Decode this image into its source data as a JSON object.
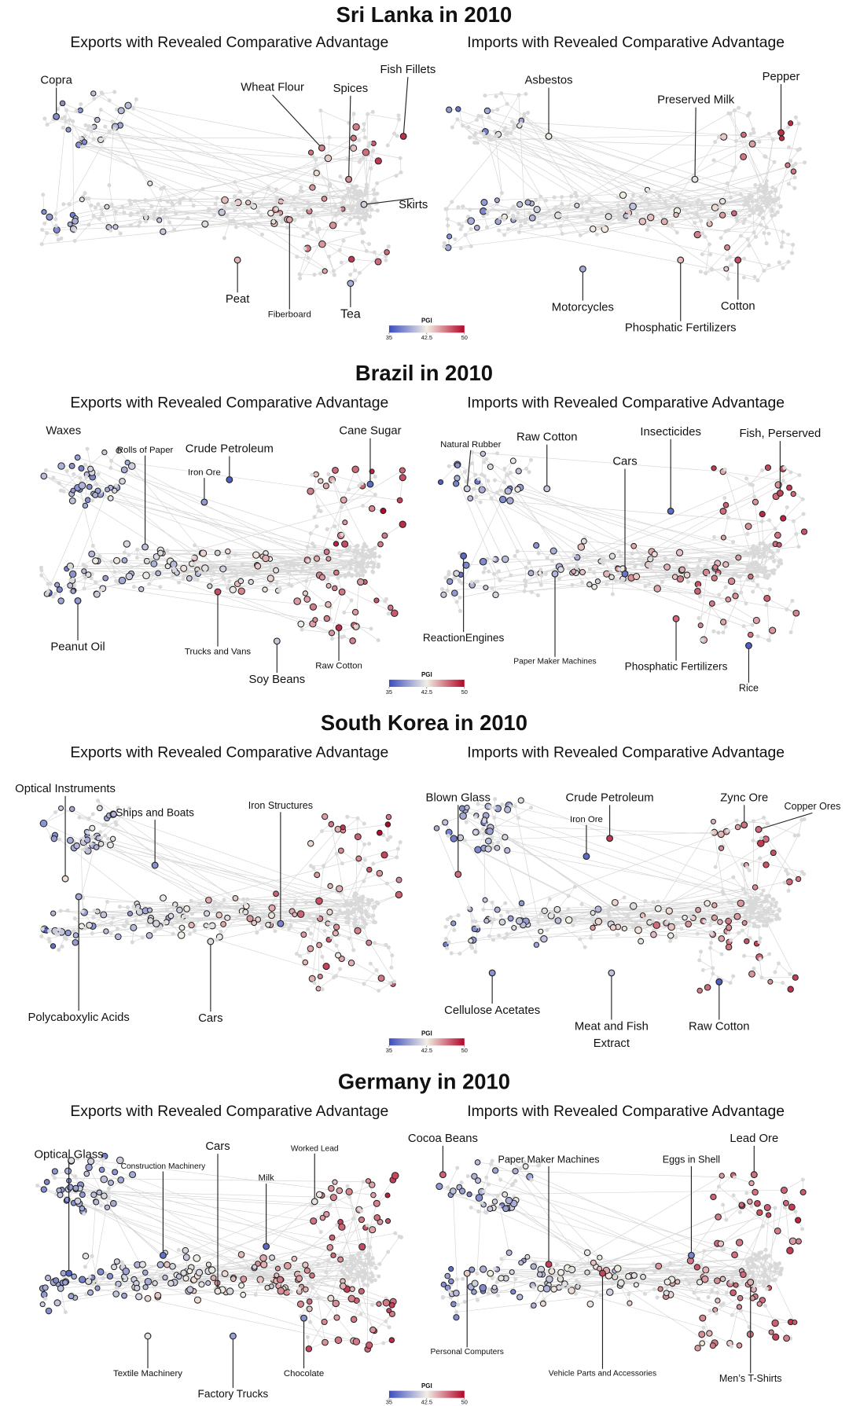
{
  "sections": [
    {
      "title": "Sri Lanka in 2010",
      "panels": [
        {
          "subtitle": "Exports with Revealed Comparative Advantage",
          "labels": [
            "Copra",
            "Wheat Flour",
            "Spices",
            "Fish Fillets",
            "Skirts",
            "Peat",
            "Fiberboard",
            "Tea"
          ]
        },
        {
          "subtitle": "Imports with Revealed Comparative Advantage",
          "labels": [
            "Asbestos",
            "Preserved Milk",
            "Pepper",
            "Motorcycles",
            "Phosphatic Fertilizers",
            "Cotton"
          ]
        }
      ],
      "colorbar": {
        "title": "PGI",
        "ticks": [
          35,
          42.5,
          50
        ]
      }
    },
    {
      "title": "Brazil in 2010",
      "panels": [
        {
          "subtitle": "Exports with Revealed Comparative Advantage",
          "labels": [
            "Waxes",
            "Rolls of Paper",
            "Crude Petroleum",
            "Iron Ore",
            "Cane Sugar",
            "Peanut Oil",
            "Trucks and Vans",
            "Soy Beans",
            "Raw Cotton"
          ]
        },
        {
          "subtitle": "Imports with Revealed Comparative Advantage",
          "labels": [
            "Natural Rubber",
            "Raw Cotton",
            "Cars",
            "Insecticides",
            "Fish, Perserved",
            "ReactionEngines",
            "Paper Maker Machines",
            "Phosphatic Fertilizers",
            "Rice"
          ]
        }
      ],
      "colorbar": {
        "title": "PGI",
        "ticks": [
          35,
          42.5,
          50
        ]
      }
    },
    {
      "title": "South Korea in 2010",
      "panels": [
        {
          "subtitle": "Exports with Revealed Comparative Advantage",
          "labels": [
            "Optical Instruments",
            "Ships and Boats",
            "Iron Structures",
            "Polycaboxylic Acids",
            "Cars"
          ]
        },
        {
          "subtitle": "Imports with Revealed Comparative Advantage",
          "labels": [
            "Blown Glass",
            "Crude Petroleum",
            "Iron Ore",
            "Zync Ore",
            "Copper Ores",
            "Cellulose Acetates",
            [
              "Meat and Fish",
              "Extract"
            ],
            "Raw Cotton"
          ]
        }
      ],
      "colorbar": {
        "title": "PGI",
        "ticks": [
          35,
          42.5,
          50
        ]
      }
    },
    {
      "title": "Germany in 2010",
      "panels": [
        {
          "subtitle": "Exports with Revealed Comparative Advantage",
          "labels": [
            "Optical Glass",
            "Construction Machinery",
            "Cars",
            "Worked Lead",
            "Milk",
            "Textile Machinery",
            "Factory Trucks",
            "Chocolate"
          ]
        },
        {
          "subtitle": "Imports with Revealed Comparative Advantage",
          "labels": [
            "Cocoa Beans",
            "Paper Maker Machines",
            "Eggs in Shell",
            "Lead Ore",
            "Personal Computers",
            "Vehicle Parts and Accessories",
            "Men’s T-Shirts"
          ]
        }
      ],
      "colorbar": {
        "title": "PGI",
        "ticks": [
          35,
          42.5,
          50
        ]
      }
    }
  ]
}
